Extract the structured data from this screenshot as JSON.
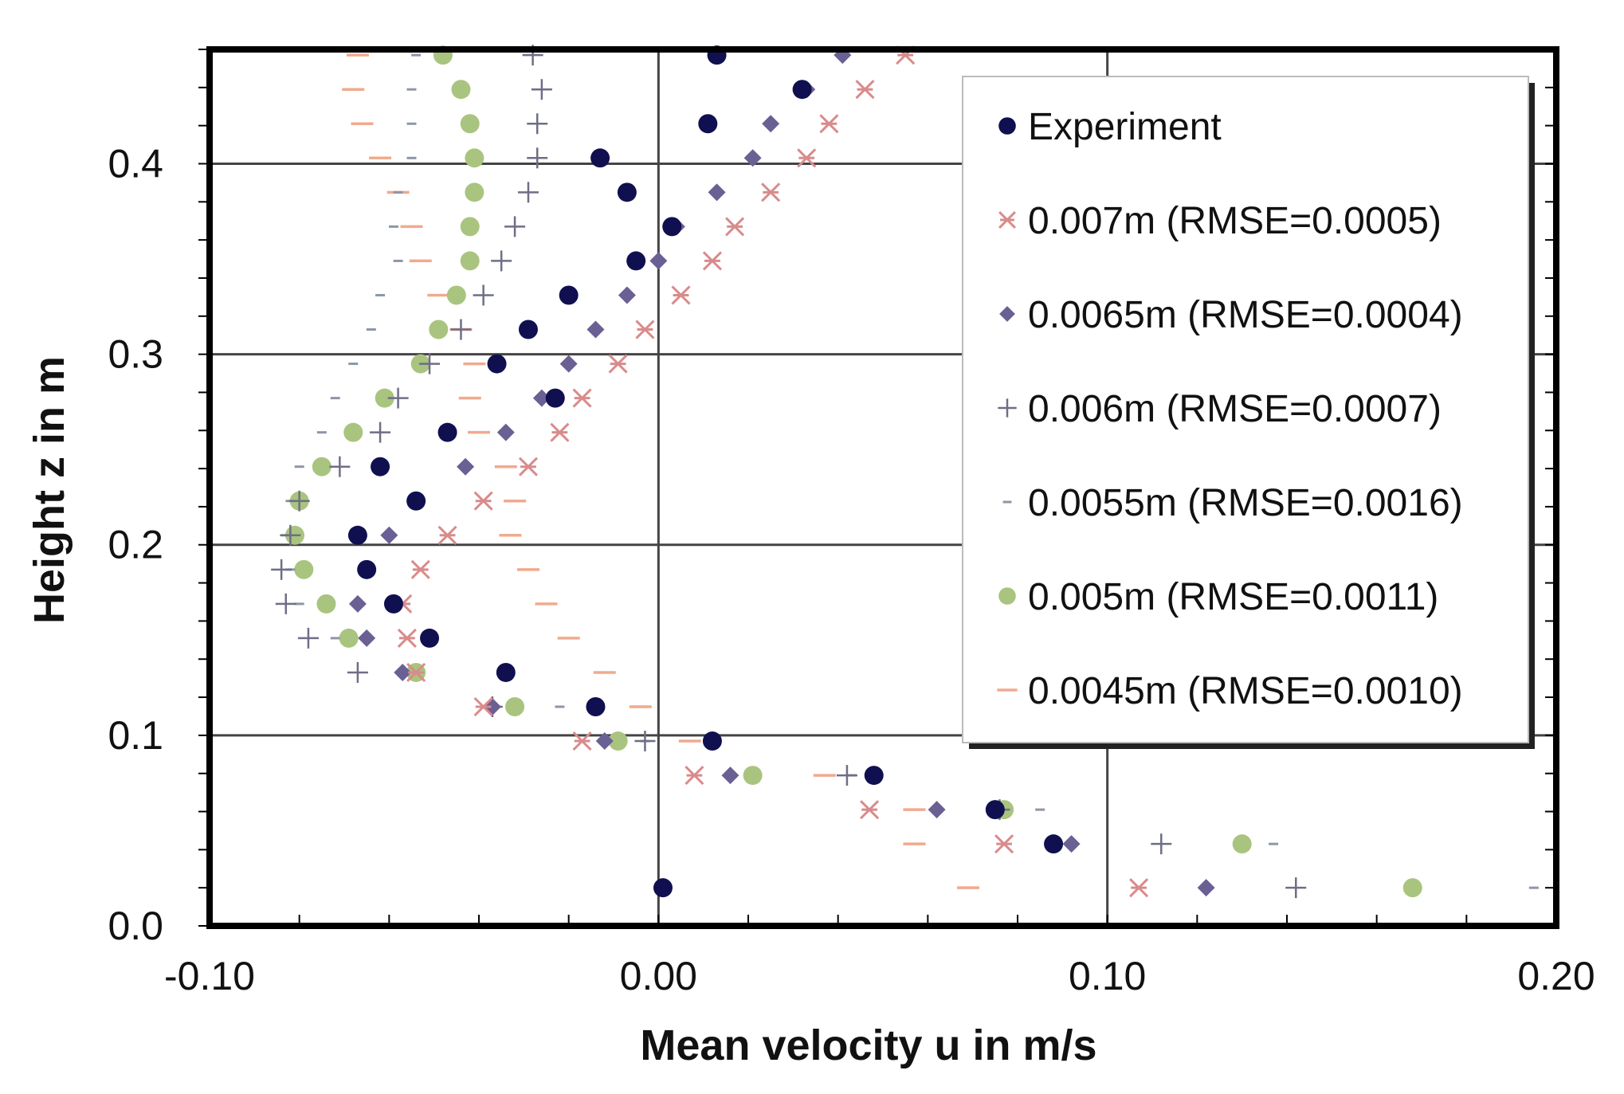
{
  "chart_data": {
    "type": "scatter",
    "title": "",
    "xlabel": "Mean velocity u in m/s",
    "ylabel": "Height z in m",
    "xlim": [
      -0.1,
      0.2
    ],
    "ylim": [
      0.0,
      0.46
    ],
    "xticks": [
      -0.1,
      0.0,
      0.1,
      0.2
    ],
    "xtick_labels": [
      "-0.10",
      "0.00",
      "0.10",
      "0.20"
    ],
    "yticks": [
      0.0,
      0.1,
      0.2,
      0.3,
      0.4
    ],
    "ytick_labels": [
      "0.0",
      "0.1",
      "0.2",
      "0.3",
      "0.4"
    ],
    "grid": true,
    "legend_position": "top-right",
    "series": [
      {
        "name": "Experiment",
        "marker": "circle",
        "color": "#101050",
        "points": [
          [
            0.013,
            0.457
          ],
          [
            0.032,
            0.439
          ],
          [
            0.011,
            0.421
          ],
          [
            -0.013,
            0.403
          ],
          [
            -0.007,
            0.385
          ],
          [
            0.003,
            0.367
          ],
          [
            -0.005,
            0.349
          ],
          [
            -0.02,
            0.331
          ],
          [
            -0.029,
            0.313
          ],
          [
            -0.036,
            0.295
          ],
          [
            -0.023,
            0.277
          ],
          [
            -0.047,
            0.259
          ],
          [
            -0.062,
            0.241
          ],
          [
            -0.054,
            0.223
          ],
          [
            -0.067,
            0.205
          ],
          [
            -0.065,
            0.187
          ],
          [
            -0.059,
            0.169
          ],
          [
            -0.051,
            0.151
          ],
          [
            -0.034,
            0.133
          ],
          [
            -0.014,
            0.115
          ],
          [
            0.012,
            0.097
          ],
          [
            0.048,
            0.079
          ],
          [
            0.075,
            0.061
          ],
          [
            0.088,
            0.043
          ],
          [
            0.001,
            0.02
          ]
        ]
      },
      {
        "name": "0.007m (RMSE=0.0005)",
        "marker": "asterisk",
        "color": "#d98b8b",
        "points": [
          [
            0.055,
            0.457
          ],
          [
            0.046,
            0.439
          ],
          [
            0.038,
            0.421
          ],
          [
            0.033,
            0.403
          ],
          [
            0.025,
            0.385
          ],
          [
            0.017,
            0.367
          ],
          [
            0.012,
            0.349
          ],
          [
            0.005,
            0.331
          ],
          [
            -0.003,
            0.313
          ],
          [
            -0.009,
            0.295
          ],
          [
            -0.017,
            0.277
          ],
          [
            -0.022,
            0.259
          ],
          [
            -0.029,
            0.241
          ],
          [
            -0.039,
            0.223
          ],
          [
            -0.047,
            0.205
          ],
          [
            -0.053,
            0.187
          ],
          [
            -0.057,
            0.169
          ],
          [
            -0.056,
            0.151
          ],
          [
            -0.054,
            0.133
          ],
          [
            -0.039,
            0.115
          ],
          [
            -0.017,
            0.097
          ],
          [
            0.008,
            0.079
          ],
          [
            0.047,
            0.061
          ],
          [
            0.077,
            0.043
          ],
          [
            0.107,
            0.02
          ]
        ]
      },
      {
        "name": "0.0065m (RMSE=0.0004)",
        "marker": "diamond",
        "color": "#6a6094",
        "points": [
          [
            0.041,
            0.457
          ],
          [
            0.033,
            0.439
          ],
          [
            0.025,
            0.421
          ],
          [
            0.021,
            0.403
          ],
          [
            0.013,
            0.385
          ],
          [
            0.004,
            0.367
          ],
          [
            0.0,
            0.349
          ],
          [
            -0.007,
            0.331
          ],
          [
            -0.014,
            0.313
          ],
          [
            -0.02,
            0.295
          ],
          [
            -0.026,
            0.277
          ],
          [
            -0.034,
            0.259
          ],
          [
            -0.043,
            0.241
          ],
          [
            -0.054,
            0.223
          ],
          [
            -0.06,
            0.205
          ],
          [
            -0.065,
            0.187
          ],
          [
            -0.067,
            0.169
          ],
          [
            -0.065,
            0.151
          ],
          [
            -0.057,
            0.133
          ],
          [
            -0.037,
            0.115
          ],
          [
            -0.012,
            0.097
          ],
          [
            0.016,
            0.079
          ],
          [
            0.062,
            0.061
          ],
          [
            0.092,
            0.043
          ],
          [
            0.122,
            0.02
          ]
        ]
      },
      {
        "name": "0.006m (RMSE=0.0007)",
        "marker": "plus",
        "color": "#6e6e86",
        "points": [
          [
            -0.028,
            0.457
          ],
          [
            -0.026,
            0.439
          ],
          [
            -0.027,
            0.421
          ],
          [
            -0.027,
            0.403
          ],
          [
            -0.029,
            0.385
          ],
          [
            -0.032,
            0.367
          ],
          [
            -0.035,
            0.349
          ],
          [
            -0.039,
            0.331
          ],
          [
            -0.044,
            0.313
          ],
          [
            -0.051,
            0.295
          ],
          [
            -0.058,
            0.277
          ],
          [
            -0.062,
            0.259
          ],
          [
            -0.071,
            0.241
          ],
          [
            -0.08,
            0.223
          ],
          [
            -0.082,
            0.205
          ],
          [
            -0.084,
            0.187
          ],
          [
            -0.083,
            0.169
          ],
          [
            -0.078,
            0.151
          ],
          [
            -0.067,
            0.133
          ],
          [
            -0.037,
            0.115
          ],
          [
            -0.003,
            0.097
          ],
          [
            0.042,
            0.079
          ],
          [
            0.076,
            0.061
          ],
          [
            0.112,
            0.043
          ],
          [
            0.142,
            0.02
          ]
        ]
      },
      {
        "name": "0.0055m (RMSE=0.0016)",
        "marker": "dash-short",
        "color": "#8d96a6",
        "points": [
          [
            -0.054,
            0.457
          ],
          [
            -0.055,
            0.439
          ],
          [
            -0.055,
            0.421
          ],
          [
            -0.055,
            0.403
          ],
          [
            -0.058,
            0.385
          ],
          [
            -0.059,
            0.367
          ],
          [
            -0.058,
            0.349
          ],
          [
            -0.062,
            0.331
          ],
          [
            -0.064,
            0.313
          ],
          [
            -0.068,
            0.295
          ],
          [
            -0.072,
            0.277
          ],
          [
            -0.075,
            0.259
          ],
          [
            -0.08,
            0.241
          ],
          [
            -0.082,
            0.223
          ],
          [
            -0.083,
            0.205
          ],
          [
            -0.082,
            0.187
          ],
          [
            -0.08,
            0.169
          ],
          [
            -0.072,
            0.151
          ],
          [
            -0.057,
            0.133
          ],
          [
            -0.022,
            0.115
          ],
          [
            -0.003,
            0.097
          ],
          [
            0.043,
            0.079
          ],
          [
            0.085,
            0.061
          ],
          [
            0.137,
            0.043
          ],
          [
            0.195,
            0.02
          ]
        ]
      },
      {
        "name": "0.005m (RMSE=0.0011)",
        "marker": "circle",
        "color": "#a9c47f",
        "points": [
          [
            -0.048,
            0.457
          ],
          [
            -0.044,
            0.439
          ],
          [
            -0.042,
            0.421
          ],
          [
            -0.041,
            0.403
          ],
          [
            -0.041,
            0.385
          ],
          [
            -0.042,
            0.367
          ],
          [
            -0.042,
            0.349
          ],
          [
            -0.045,
            0.331
          ],
          [
            -0.049,
            0.313
          ],
          [
            -0.053,
            0.295
          ],
          [
            -0.061,
            0.277
          ],
          [
            -0.068,
            0.259
          ],
          [
            -0.075,
            0.241
          ],
          [
            -0.08,
            0.223
          ],
          [
            -0.081,
            0.205
          ],
          [
            -0.079,
            0.187
          ],
          [
            -0.074,
            0.169
          ],
          [
            -0.069,
            0.151
          ],
          [
            -0.054,
            0.133
          ],
          [
            -0.032,
            0.115
          ],
          [
            -0.009,
            0.097
          ],
          [
            0.021,
            0.079
          ],
          [
            0.077,
            0.061
          ],
          [
            0.13,
            0.043
          ],
          [
            0.168,
            0.02
          ]
        ]
      },
      {
        "name": "0.0045m (RMSE=0.0010)",
        "marker": "dash",
        "color": "#f0aa8e",
        "points": [
          [
            -0.067,
            0.457
          ],
          [
            -0.068,
            0.439
          ],
          [
            -0.066,
            0.421
          ],
          [
            -0.062,
            0.403
          ],
          [
            -0.058,
            0.385
          ],
          [
            -0.055,
            0.367
          ],
          [
            -0.053,
            0.349
          ],
          [
            -0.049,
            0.331
          ],
          [
            -0.044,
            0.313
          ],
          [
            -0.041,
            0.295
          ],
          [
            -0.042,
            0.277
          ],
          [
            -0.04,
            0.259
          ],
          [
            -0.034,
            0.241
          ],
          [
            -0.032,
            0.223
          ],
          [
            -0.033,
            0.205
          ],
          [
            -0.029,
            0.187
          ],
          [
            -0.025,
            0.169
          ],
          [
            -0.02,
            0.151
          ],
          [
            -0.012,
            0.133
          ],
          [
            -0.004,
            0.115
          ],
          [
            0.007,
            0.097
          ],
          [
            0.037,
            0.079
          ],
          [
            0.057,
            0.061
          ],
          [
            0.057,
            0.043
          ],
          [
            0.069,
            0.02
          ]
        ]
      }
    ]
  }
}
